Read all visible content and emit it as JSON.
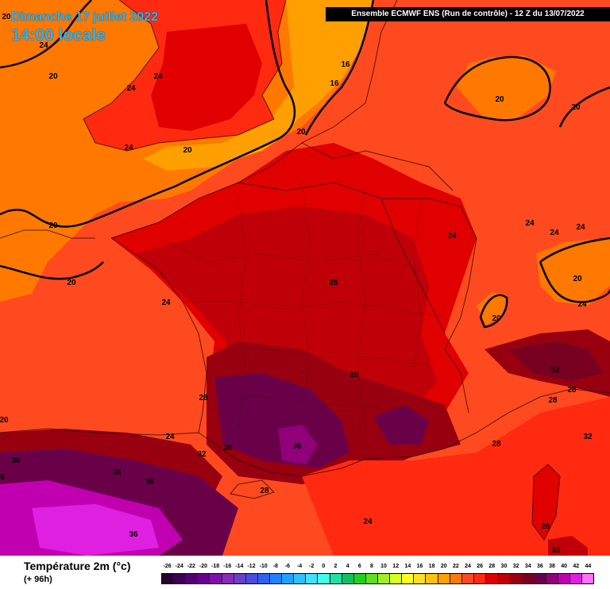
{
  "header": {
    "date_label": "Dimanche 17 juillet 2022",
    "time_label": "14:00 locale",
    "model_label": "Ensemble ECMWF ENS  (Run de contrôle)  -  12 Z du 13/07/2022"
  },
  "legend": {
    "title": "Température 2m (°c)",
    "subtitle": "(+ 96h)",
    "scale": [
      {
        "value": "-26",
        "color": "#2a0030"
      },
      {
        "value": "-24",
        "color": "#3c0050"
      },
      {
        "value": "-22",
        "color": "#520072"
      },
      {
        "value": "-20",
        "color": "#6a0090"
      },
      {
        "value": "-18",
        "color": "#7e12a8"
      },
      {
        "value": "-16",
        "color": "#8a2ab8"
      },
      {
        "value": "-14",
        "color": "#6a40c8"
      },
      {
        "value": "-12",
        "color": "#4a4ee0"
      },
      {
        "value": "-10",
        "color": "#3060f0"
      },
      {
        "value": "-8",
        "color": "#2080ff"
      },
      {
        "value": "-6",
        "color": "#20a0ff"
      },
      {
        "value": "-4",
        "color": "#30c0ff"
      },
      {
        "value": "-2",
        "color": "#40e0ff"
      },
      {
        "value": "0",
        "color": "#40ffe8"
      },
      {
        "value": "2",
        "color": "#20e0a0"
      },
      {
        "value": "4",
        "color": "#10c060"
      },
      {
        "value": "6",
        "color": "#20d020"
      },
      {
        "value": "8",
        "color": "#60e020"
      },
      {
        "value": "10",
        "color": "#a0f020"
      },
      {
        "value": "12",
        "color": "#d8ff20"
      },
      {
        "value": "14",
        "color": "#ffff20"
      },
      {
        "value": "16",
        "color": "#ffe020"
      },
      {
        "value": "18",
        "color": "#ffc010"
      },
      {
        "value": "20",
        "color": "#ffa000"
      },
      {
        "value": "22",
        "color": "#ff7800"
      },
      {
        "value": "24",
        "color": "#ff4a20"
      },
      {
        "value": "26",
        "color": "#ff2a10"
      },
      {
        "value": "28",
        "color": "#e00000"
      },
      {
        "value": "30",
        "color": "#c00008"
      },
      {
        "value": "32",
        "color": "#980010"
      },
      {
        "value": "34",
        "color": "#780020"
      },
      {
        "value": "36",
        "color": "#6a0048"
      },
      {
        "value": "38",
        "color": "#900078"
      },
      {
        "value": "40",
        "color": "#c000b0"
      },
      {
        "value": "42",
        "color": "#e020e0"
      },
      {
        "value": "44",
        "color": "#ff70ff"
      }
    ]
  },
  "contour_labels": [
    {
      "id": "l01",
      "text": "20"
    },
    {
      "id": "l02",
      "text": "24"
    },
    {
      "id": "l03",
      "text": "20"
    },
    {
      "id": "l04",
      "text": "24"
    },
    {
      "id": "l05",
      "text": "24"
    },
    {
      "id": "l06",
      "text": "16"
    },
    {
      "id": "l07",
      "text": "16"
    },
    {
      "id": "l08",
      "text": "20"
    },
    {
      "id": "l09",
      "text": "20"
    },
    {
      "id": "l10",
      "text": "20"
    },
    {
      "id": "l11",
      "text": "24"
    },
    {
      "id": "l12",
      "text": "20"
    },
    {
      "id": "l13",
      "text": "20"
    },
    {
      "id": "l14",
      "text": "24"
    },
    {
      "id": "l15",
      "text": "24"
    },
    {
      "id": "l16",
      "text": "24"
    },
    {
      "id": "l17",
      "text": "24"
    },
    {
      "id": "l18",
      "text": "20"
    },
    {
      "id": "l19",
      "text": "28"
    },
    {
      "id": "l20",
      "text": "20"
    },
    {
      "id": "l21",
      "text": "24"
    },
    {
      "id": "l22",
      "text": "24"
    },
    {
      "id": "l23",
      "text": "20"
    },
    {
      "id": "l24",
      "text": "32"
    },
    {
      "id": "l25",
      "text": "28"
    },
    {
      "id": "l26",
      "text": "28"
    },
    {
      "id": "l27",
      "text": "28"
    },
    {
      "id": "l28",
      "text": "28"
    },
    {
      "id": "l29",
      "text": "20"
    },
    {
      "id": "l30",
      "text": "24"
    },
    {
      "id": "l31",
      "text": "32"
    },
    {
      "id": "l32",
      "text": "36"
    },
    {
      "id": "l33",
      "text": "36"
    },
    {
      "id": "l34",
      "text": "28"
    },
    {
      "id": "l35",
      "text": "32"
    },
    {
      "id": "l36",
      "text": "36"
    },
    {
      "id": "l37",
      "text": "36"
    },
    {
      "id": "l38",
      "text": "6"
    },
    {
      "id": "l39",
      "text": "36"
    },
    {
      "id": "l40",
      "text": "28"
    },
    {
      "id": "l41",
      "text": "24"
    },
    {
      "id": "l42",
      "text": "36"
    },
    {
      "id": "l43",
      "text": "28"
    },
    {
      "id": "l44",
      "text": "32"
    }
  ]
}
